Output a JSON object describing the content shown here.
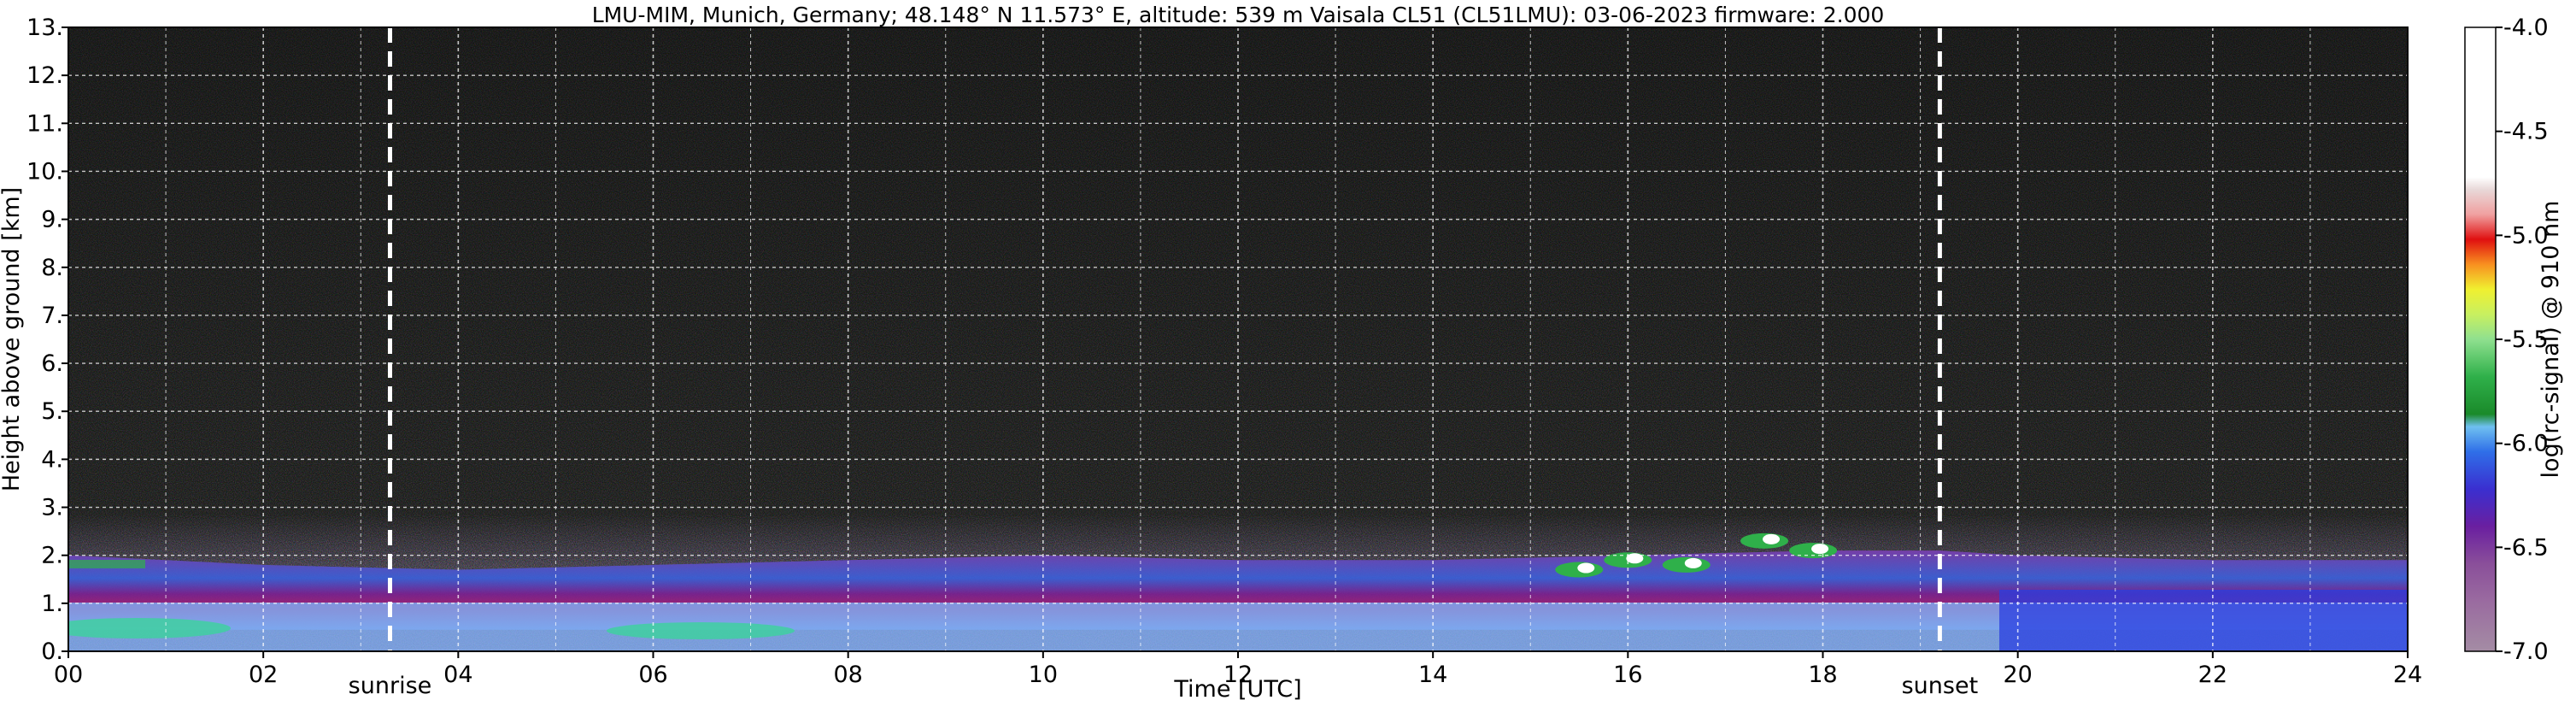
{
  "chart_data": {
    "type": "heatmap",
    "title": "LMU-MIM, Munich, Germany; 48.148° N 11.573° E, altitude: 539 m    Vaisala CL51 (CL51LMU): 03-06-2023    firmware: 2.000",
    "xlabel": "Time [UTC]",
    "ylabel": "Height above ground [km]",
    "xlim": [
      0,
      24
    ],
    "ylim": [
      0,
      13
    ],
    "x_ticks": [
      "00",
      "02",
      "04",
      "06",
      "08",
      "10",
      "12",
      "14",
      "16",
      "18",
      "20",
      "22",
      "24"
    ],
    "y_ticks": [
      "0.",
      "1.",
      "2.",
      "3.",
      "4.",
      "5.",
      "6.",
      "7.",
      "8.",
      "9.",
      "10.",
      "11.",
      "12.",
      "13."
    ],
    "grid": true,
    "annotations": [
      {
        "label": "sunrise",
        "x": 3.3
      },
      {
        "label": "sunset",
        "x": 19.2
      }
    ],
    "colorbar": {
      "label": "log(rc-signal) @ 910 nm",
      "range": [
        -7.0,
        -4.0
      ],
      "ticks": [
        "-4.0",
        "-4.5",
        "-5.0",
        "-5.5",
        "-6.0",
        "-6.5",
        "-7.0"
      ]
    },
    "layers": [
      {
        "name": "boundary layer top",
        "x": [
          0,
          2,
          4,
          6,
          8,
          10,
          12,
          14,
          16,
          18,
          19.2,
          20,
          22,
          24
        ],
        "height_km": [
          2.0,
          1.8,
          1.7,
          1.8,
          1.9,
          2.0,
          1.9,
          1.9,
          2.0,
          2.1,
          2.1,
          2.0,
          1.9,
          1.9
        ]
      },
      {
        "name": "clouds",
        "x": [
          15.5,
          16.0,
          16.6,
          17.4,
          17.9
        ],
        "height_km": [
          1.7,
          1.9,
          1.8,
          2.3,
          2.1
        ]
      }
    ]
  },
  "colors": {
    "colormap": [
      "#a48ca4",
      "#9a6ba0",
      "#8a4f9a",
      "#6a1fa0",
      "#3a2fd0",
      "#2f6fe8",
      "#3a9ef0",
      "#6fc0f0",
      "#1a8a2a",
      "#2fb04a",
      "#5fd06f",
      "#8fe08f",
      "#c8f060",
      "#f0f030",
      "#f8c020",
      "#f89020",
      "#f05020",
      "#e01010",
      "#f0a0a0",
      "#e8d8d8",
      "#ffffff"
    ]
  }
}
